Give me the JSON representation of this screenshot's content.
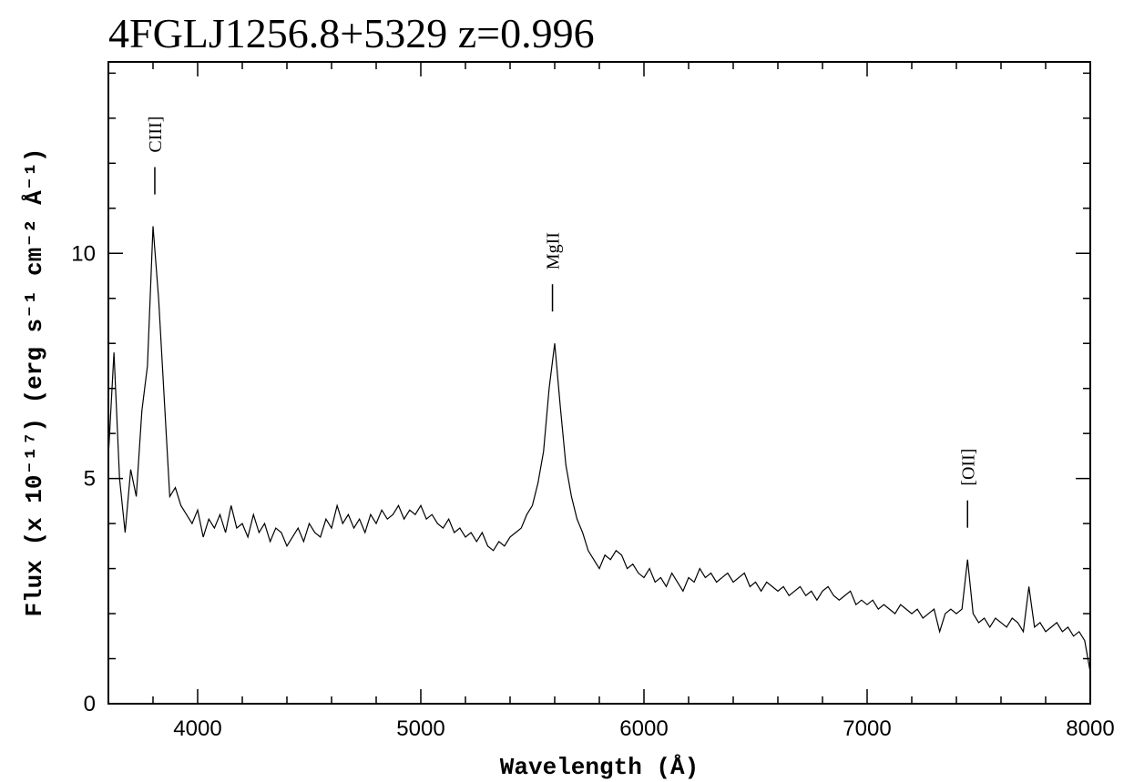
{
  "chart_data": {
    "type": "line",
    "title": "4FGLJ1256.8+5329 z=0.996",
    "xlabel": "Wavelength (Å)",
    "ylabel": "Flux (x 10⁻¹⁷) (erg s⁻¹ cm⁻² Å⁻¹)",
    "xlim": [
      3600,
      8000
    ],
    "ylim": [
      0,
      14.25
    ],
    "xticks": [
      4000,
      5000,
      6000,
      7000,
      8000
    ],
    "yticks": [
      0,
      5,
      10
    ],
    "xminorticks": [
      3800,
      4200,
      4400,
      4600,
      4800,
      5200,
      5400,
      5600,
      5800,
      6200,
      6400,
      6600,
      6800,
      7200,
      7400,
      7600,
      7800
    ],
    "yminorticks": [
      1,
      2,
      3,
      4,
      6,
      7,
      8,
      9,
      11,
      12,
      13,
      14
    ],
    "annotations": [
      {
        "text": "CIII]",
        "x": 3808
      },
      {
        "text": "MgII",
        "x": 5590
      },
      {
        "text": "[OII]",
        "x": 7450
      }
    ],
    "x": [
      3600,
      3625,
      3650,
      3675,
      3700,
      3725,
      3750,
      3775,
      3800,
      3825,
      3850,
      3875,
      3900,
      3925,
      3950,
      3975,
      4000,
      4025,
      4050,
      4075,
      4100,
      4125,
      4150,
      4175,
      4200,
      4225,
      4250,
      4275,
      4300,
      4325,
      4350,
      4375,
      4400,
      4425,
      4450,
      4475,
      4500,
      4525,
      4550,
      4575,
      4600,
      4625,
      4650,
      4675,
      4700,
      4725,
      4750,
      4775,
      4800,
      4825,
      4850,
      4875,
      4900,
      4925,
      4950,
      4975,
      5000,
      5025,
      5050,
      5075,
      5100,
      5125,
      5150,
      5175,
      5200,
      5225,
      5250,
      5275,
      5300,
      5325,
      5350,
      5375,
      5400,
      5425,
      5450,
      5475,
      5500,
      5525,
      5550,
      5575,
      5600,
      5625,
      5650,
      5675,
      5700,
      5725,
      5750,
      5775,
      5800,
      5825,
      5850,
      5875,
      5900,
      5925,
      5950,
      5975,
      6000,
      6025,
      6050,
      6075,
      6100,
      6125,
      6150,
      6175,
      6200,
      6225,
      6250,
      6275,
      6300,
      6325,
      6350,
      6375,
      6400,
      6425,
      6450,
      6475,
      6500,
      6525,
      6550,
      6575,
      6600,
      6625,
      6650,
      6675,
      6700,
      6725,
      6750,
      6775,
      6800,
      6825,
      6850,
      6875,
      6900,
      6925,
      6950,
      6975,
      7000,
      7025,
      7050,
      7075,
      7100,
      7125,
      7150,
      7175,
      7200,
      7225,
      7250,
      7275,
      7300,
      7325,
      7350,
      7375,
      7400,
      7425,
      7450,
      7475,
      7500,
      7525,
      7550,
      7575,
      7600,
      7625,
      7650,
      7675,
      7700,
      7725,
      7750,
      7775,
      7800,
      7825,
      7850,
      7875,
      7900,
      7925,
      7950,
      7975,
      8000
    ],
    "series": [
      {
        "color": "#000000",
        "values": [
          5.5,
          7.8,
          5.0,
          3.8,
          5.2,
          4.6,
          6.5,
          7.5,
          10.6,
          9.0,
          6.8,
          4.6,
          4.8,
          4.4,
          4.2,
          4.0,
          4.3,
          3.7,
          4.1,
          3.9,
          4.2,
          3.8,
          4.4,
          3.9,
          4.0,
          3.7,
          4.2,
          3.8,
          4.0,
          3.6,
          3.9,
          3.8,
          3.5,
          3.7,
          3.9,
          3.6,
          4.0,
          3.8,
          3.7,
          4.1,
          3.9,
          4.4,
          4.0,
          4.2,
          3.9,
          4.1,
          3.8,
          4.2,
          4.0,
          4.3,
          4.1,
          4.2,
          4.4,
          4.1,
          4.3,
          4.2,
          4.4,
          4.1,
          4.2,
          4.0,
          3.9,
          4.1,
          3.8,
          3.9,
          3.7,
          3.8,
          3.6,
          3.8,
          3.5,
          3.4,
          3.6,
          3.5,
          3.7,
          3.8,
          3.9,
          4.2,
          4.4,
          4.9,
          5.6,
          7.0,
          8.0,
          6.6,
          5.3,
          4.6,
          4.1,
          3.8,
          3.4,
          3.2,
          3.0,
          3.3,
          3.2,
          3.4,
          3.3,
          3.0,
          3.1,
          2.9,
          2.8,
          3.0,
          2.7,
          2.8,
          2.6,
          2.9,
          2.7,
          2.5,
          2.8,
          2.7,
          3.0,
          2.8,
          2.9,
          2.7,
          2.8,
          2.9,
          2.7,
          2.8,
          2.9,
          2.6,
          2.7,
          2.5,
          2.7,
          2.6,
          2.5,
          2.6,
          2.4,
          2.5,
          2.6,
          2.4,
          2.5,
          2.3,
          2.5,
          2.6,
          2.4,
          2.3,
          2.4,
          2.5,
          2.2,
          2.3,
          2.2,
          2.3,
          2.1,
          2.2,
          2.1,
          2.0,
          2.2,
          2.1,
          2.0,
          2.1,
          1.9,
          2.0,
          2.1,
          1.6,
          2.0,
          2.1,
          2.0,
          2.1,
          3.2,
          2.0,
          1.8,
          1.9,
          1.7,
          1.9,
          1.8,
          1.7,
          1.9,
          1.8,
          1.6,
          2.6,
          1.7,
          1.8,
          1.6,
          1.7,
          1.8,
          1.6,
          1.7,
          1.5,
          1.6,
          1.4,
          0.7
        ]
      }
    ]
  }
}
